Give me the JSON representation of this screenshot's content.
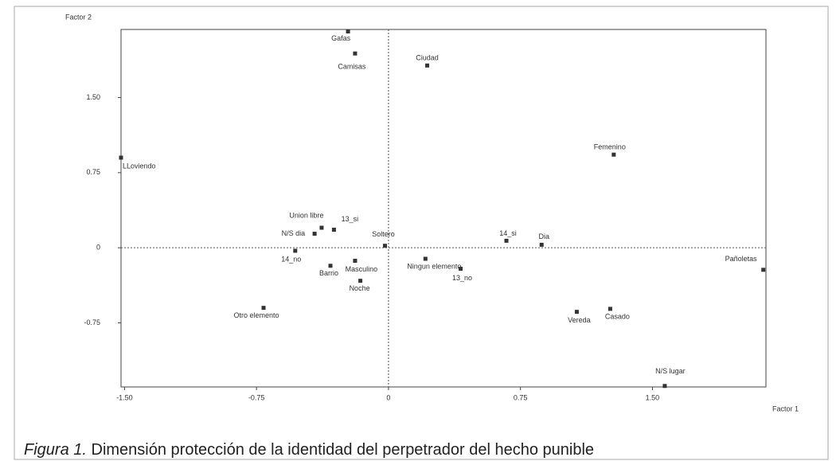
{
  "chart_data": {
    "type": "scatter",
    "xlabel": "Factor 1",
    "ylabel": "Factor 2",
    "caption_label": "Figura 1.",
    "caption": "Dimensión protección de la identidad del perpetrador del hecho punible",
    "color": "#333333",
    "labels": [
      "Gafas",
      "Camisas",
      "Ciudad",
      "LLoviendo",
      "Femenino",
      "Union libre",
      "13_si",
      "N/S dia",
      "Soltero",
      "14_si",
      "Dia",
      "14_no",
      "Barrio",
      "Masculino",
      "Noche",
      "Ningun elemento",
      "13_no",
      "Pañoletas",
      "Otro elemento",
      "Vereda",
      "Casado",
      "N/S lugar"
    ],
    "x": [
      -0.23,
      -0.19,
      0.22,
      -1.52,
      1.28,
      -0.38,
      -0.31,
      -0.42,
      -0.02,
      0.67,
      0.87,
      -0.53,
      -0.33,
      -0.19,
      -0.16,
      0.21,
      0.41,
      2.13,
      -0.71,
      1.07,
      1.26,
      1.57
    ],
    "y": [
      2.16,
      1.94,
      1.82,
      0.9,
      0.93,
      0.2,
      0.18,
      0.14,
      0.02,
      0.07,
      0.03,
      -0.03,
      -0.18,
      -0.13,
      -0.33,
      -0.11,
      -0.21,
      -0.22,
      -0.6,
      -0.64,
      -0.61,
      -1.38
    ],
    "xlim": [
      -1.52,
      2.145
    ],
    "ylim": [
      -1.39,
      2.18
    ],
    "xticks": [
      {
        "value": -1.5,
        "label": "-1.50"
      },
      -0.75,
      0,
      0.75,
      {
        "value": 1.5,
        "label": "1.50"
      }
    ],
    "yticks": [
      -0.75,
      0,
      0.75,
      {
        "value": 1.5,
        "label": "1.50"
      }
    ]
  }
}
